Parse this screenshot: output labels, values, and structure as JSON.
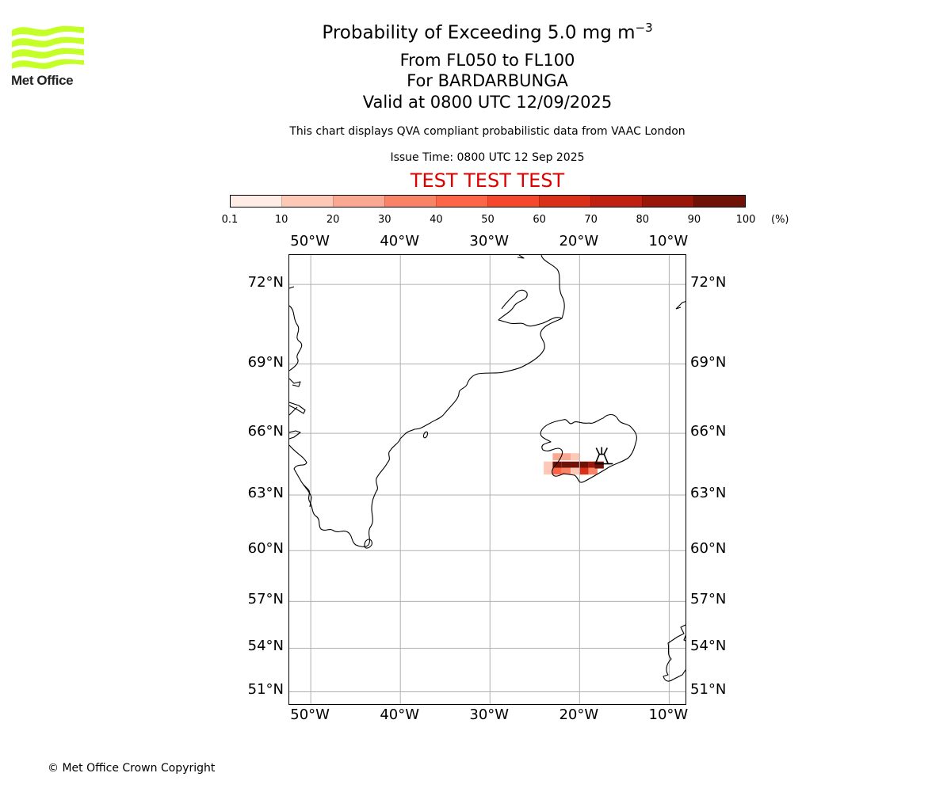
{
  "logo": {
    "text": "Met Office",
    "color": "#c4ff27"
  },
  "header": {
    "title_prefix": "Probability of Exceeding 5.0 mg m",
    "title_exponent": "−3",
    "levels": "From FL050 to FL100",
    "volcano": "For BARDARBUNGA",
    "valid": "Valid at 0800 UTC 12/09/2025",
    "description": "This chart displays QVA compliant probabilistic data from VAAC London",
    "issue_time": "Issue Time: 0800 UTC 12 Sep 2025",
    "test_banner": "TEST TEST TEST"
  },
  "colorbar": {
    "unit": "(%)",
    "ticks": [
      "0.1",
      "10",
      "20",
      "30",
      "40",
      "50",
      "60",
      "70",
      "80",
      "90",
      "100"
    ],
    "colors": [
      "#ffece5",
      "#fdc9b6",
      "#fba893",
      "#f98366",
      "#fc6546",
      "#f5472c",
      "#da3017",
      "#bf2011",
      "#9a1608",
      "#711208"
    ]
  },
  "map": {
    "projection_extent": {
      "lon": [
        -52.4,
        -8.0
      ],
      "lat": [
        50.0,
        73.0
      ]
    },
    "lon_labels": [
      "50°W",
      "40°W",
      "30°W",
      "20°W",
      "10°W"
    ],
    "lat_labels": [
      "72°N",
      "69°N",
      "66°N",
      "63°N",
      "60°N",
      "57°N",
      "54°N",
      "51°N"
    ],
    "gridline_color": "#b0b0b0",
    "plume": {
      "volcano_location": {
        "lon": -17.53,
        "lat": 64.64
      },
      "cells": [
        {
          "lon": -23.5,
          "lat": 64.5,
          "prob": 15
        },
        {
          "lon": -23.5,
          "lat": 64.2,
          "prob": 10
        },
        {
          "lon": -22.5,
          "lat": 64.9,
          "prob": 25
        },
        {
          "lon": -22.5,
          "lat": 64.5,
          "prob": 95
        },
        {
          "lon": -22.5,
          "lat": 64.2,
          "prob": 40
        },
        {
          "lon": -21.5,
          "lat": 64.9,
          "prob": 20
        },
        {
          "lon": -21.5,
          "lat": 64.5,
          "prob": 95
        },
        {
          "lon": -21.5,
          "lat": 64.2,
          "prob": 30
        },
        {
          "lon": -20.5,
          "lat": 64.9,
          "prob": 15
        },
        {
          "lon": -20.5,
          "lat": 64.5,
          "prob": 95
        },
        {
          "lon": -20.5,
          "lat": 64.2,
          "prob": 15
        },
        {
          "lon": -19.5,
          "lat": 64.5,
          "prob": 95
        },
        {
          "lon": -19.5,
          "lat": 64.2,
          "prob": 65
        },
        {
          "lon": -18.5,
          "lat": 64.5,
          "prob": 85
        },
        {
          "lon": -18.5,
          "lat": 64.2,
          "prob": 35
        },
        {
          "lon": -17.8,
          "lat": 64.5,
          "prob": 95
        }
      ]
    }
  },
  "footer": {
    "copyright": "© Met Office Crown Copyright"
  }
}
